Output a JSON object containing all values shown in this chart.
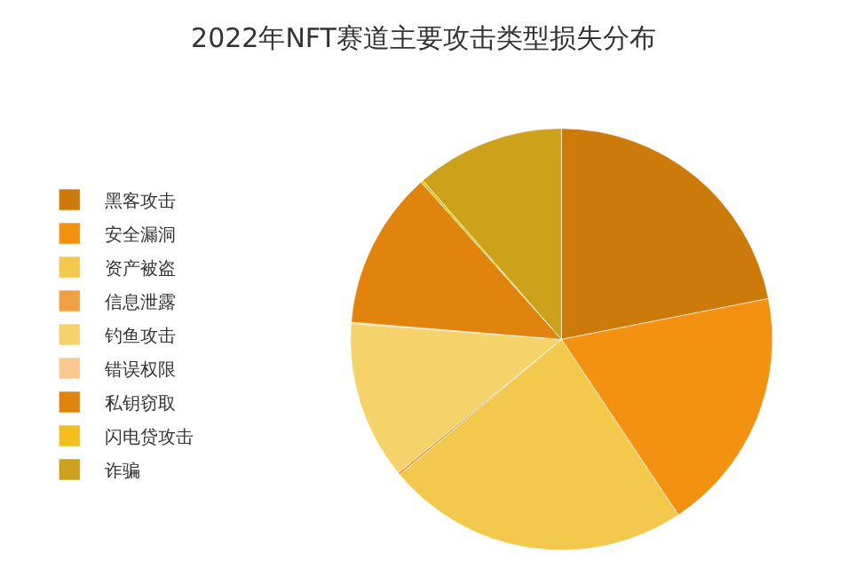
{
  "chart_data": {
    "type": "pie",
    "title": "2022年NFT赛道主要攻击类型损失分布",
    "categories": [
      "黑客攻击",
      "安全漏洞",
      "资产被盗",
      "信息泄露",
      "钓鱼攻击",
      "错误权限",
      "私钥窃取",
      "闪电贷攻击",
      "诈骗"
    ],
    "values": [
      21.9,
      18.75,
      23.25,
      0.2,
      12.1,
      0.1,
      12.1,
      0.2,
      11.4
    ],
    "colors": [
      "#cc7a0a",
      "#f39110",
      "#f2c94c",
      "#f0a040",
      "#f5d36a",
      "#f8c890",
      "#e0840e",
      "#f2be1e",
      "#cca21a"
    ],
    "legend": "left"
  }
}
